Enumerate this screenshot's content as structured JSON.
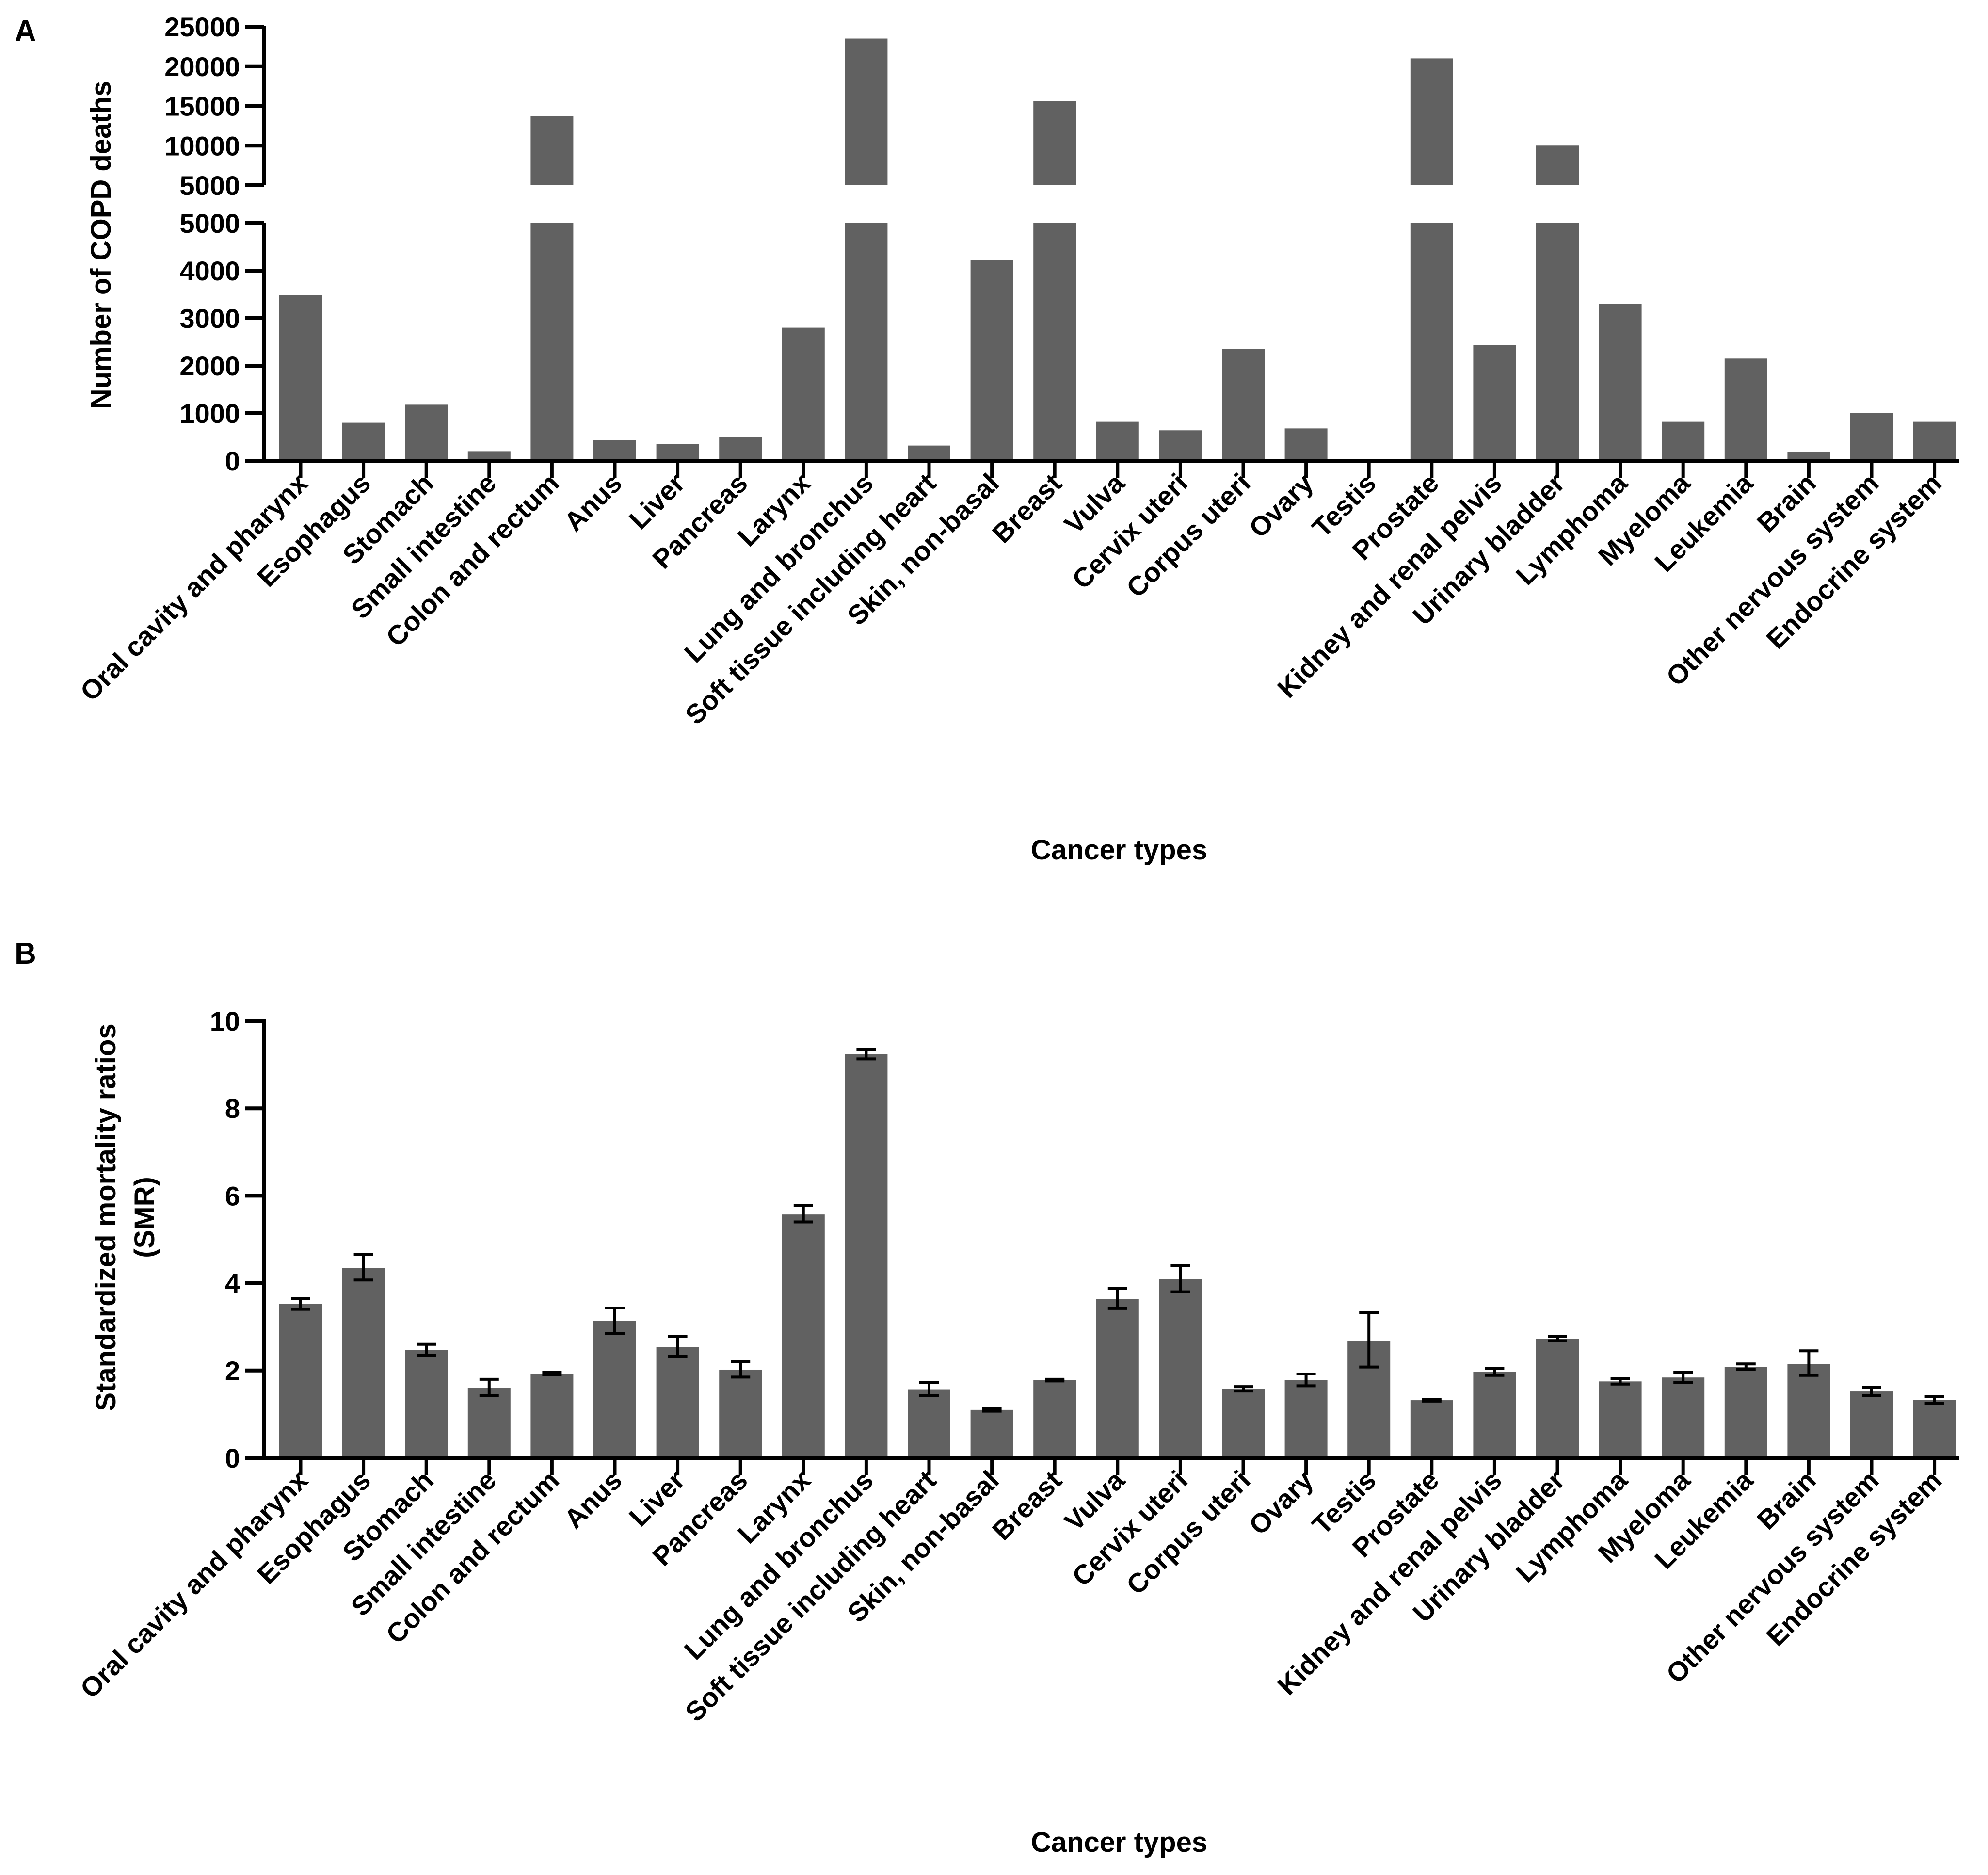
{
  "colors": {
    "bar": "#616161",
    "axis": "#000000",
    "text": "#000000"
  },
  "chart_data": [
    {
      "panel_label": "A",
      "type": "bar",
      "xlabel": "Cancer types",
      "ylabel": "Number of COPD deaths",
      "axis_break": true,
      "ylim_lower": [
        0,
        5000
      ],
      "ylim_upper": [
        5000,
        25000
      ],
      "yticks_lower": [
        "0",
        "1000",
        "2000",
        "3000",
        "4000",
        "5000"
      ],
      "yticks_upper": [
        "5000",
        "10000",
        "15000",
        "20000",
        "25000"
      ],
      "categories": [
        "Oral cavity and pharynx",
        "Esophagus",
        "Stomach",
        "Small intestine",
        "Colon and rectum",
        "Anus",
        "Liver",
        "Pancreas",
        "Larynx",
        "Lung and bronchus",
        "Soft tissue including heart",
        "Skin, non-basal",
        "Breast",
        "Vulva",
        "Cervix uteri",
        "Corpus uteri",
        "Ovary",
        "Testis",
        "Prostate",
        "Kidney and renal pelvis",
        "Urinary bladder",
        "Lymphoma",
        "Myeloma",
        "Leukemia",
        "Brain",
        "Other nervous system",
        "Endocrine system"
      ],
      "values": [
        3480,
        800,
        1180,
        200,
        13700,
        430,
        350,
        490,
        2800,
        23500,
        320,
        4220,
        15600,
        820,
        640,
        2350,
        680,
        15,
        21000,
        2430,
        10000,
        3300,
        820,
        2150,
        190,
        1000,
        820
      ]
    },
    {
      "panel_label": "B",
      "type": "bar",
      "xlabel": "Cancer types",
      "ylabel_lines": [
        "Standardized mortality ratios",
        "(SMR)"
      ],
      "ylim": [
        0,
        10
      ],
      "yticks": [
        "0",
        "2",
        "4",
        "6",
        "8",
        "10"
      ],
      "categories": [
        "Oral cavity and pharynx",
        "Esophagus",
        "Stomach",
        "Small intestine",
        "Colon and rectum",
        "Anus",
        "Liver",
        "Pancreas",
        "Larynx",
        "Lung and bronchus",
        "Soft tissue including heart",
        "Skin, non-basal",
        "Breast",
        "Vulva",
        "Cervix uteri",
        "Corpus uteri",
        "Ovary",
        "Testis",
        "Prostate",
        "Kidney and renal pelvis",
        "Urinary bladder",
        "Lymphoma",
        "Myeloma",
        "Leukemia",
        "Brain",
        "Other nervous system",
        "Endocrine system"
      ],
      "values": [
        3.52,
        4.35,
        2.47,
        1.6,
        1.93,
        3.13,
        2.54,
        2.02,
        5.57,
        9.24,
        1.57,
        1.1,
        1.78,
        3.64,
        4.09,
        1.58,
        1.78,
        2.68,
        1.32,
        1.97,
        2.73,
        1.75,
        1.84,
        2.08,
        2.15,
        1.52,
        1.33
      ],
      "err_low": [
        3.4,
        4.07,
        2.35,
        1.42,
        1.9,
        2.85,
        2.32,
        1.85,
        5.4,
        9.13,
        1.42,
        1.07,
        1.76,
        3.42,
        3.8,
        1.53,
        1.65,
        2.08,
        1.3,
        1.89,
        2.68,
        1.69,
        1.73,
        2.02,
        1.89,
        1.43,
        1.25
      ],
      "err_high": [
        3.65,
        4.65,
        2.6,
        1.8,
        1.96,
        3.43,
        2.78,
        2.2,
        5.78,
        9.35,
        1.72,
        1.13,
        1.8,
        3.88,
        4.4,
        1.63,
        1.92,
        3.33,
        1.34,
        2.05,
        2.78,
        1.81,
        1.96,
        2.15,
        2.45,
        1.61,
        1.41
      ]
    }
  ]
}
